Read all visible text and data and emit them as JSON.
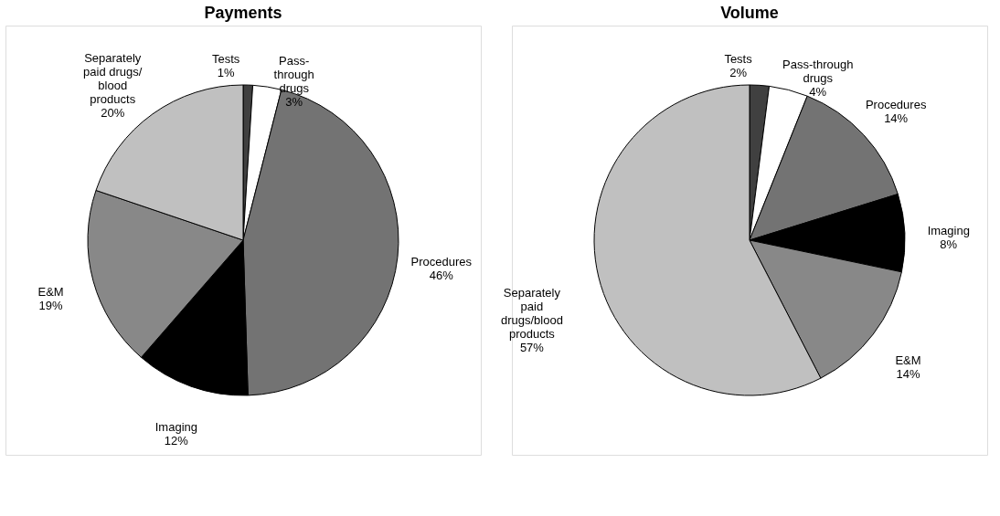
{
  "chart_data": [
    {
      "type": "pie",
      "title": "Payments",
      "categories": [
        "Tests",
        "Pass-\nthrough\ndrugs",
        "Procedures",
        "Imaging",
        "E&M",
        "Separately\npaid drugs/\nblood\nproducts"
      ],
      "values": [
        1,
        3,
        46,
        12,
        19,
        20
      ],
      "value_labels": [
        "1%",
        "3%",
        "46%",
        "12%",
        "19%",
        "20%"
      ],
      "colors": [
        "#404040",
        "#ffffff",
        "#737373",
        "#000000",
        "#888888",
        "#c0c0c0"
      ],
      "legend": false
    },
    {
      "type": "pie",
      "title": "Volume",
      "categories": [
        "Tests",
        "Pass-through\ndrugs",
        "Procedures",
        "Imaging",
        "E&M",
        "Separately\npaid\ndrugs/blood\nproducts"
      ],
      "values": [
        2,
        4,
        14,
        8,
        14,
        57
      ],
      "value_labels": [
        "2%",
        "4%",
        "14%",
        "8%",
        "14%",
        "57%"
      ],
      "colors": [
        "#404040",
        "#ffffff",
        "#737373",
        "#000000",
        "#888888",
        "#c0c0c0"
      ],
      "legend": false
    }
  ]
}
